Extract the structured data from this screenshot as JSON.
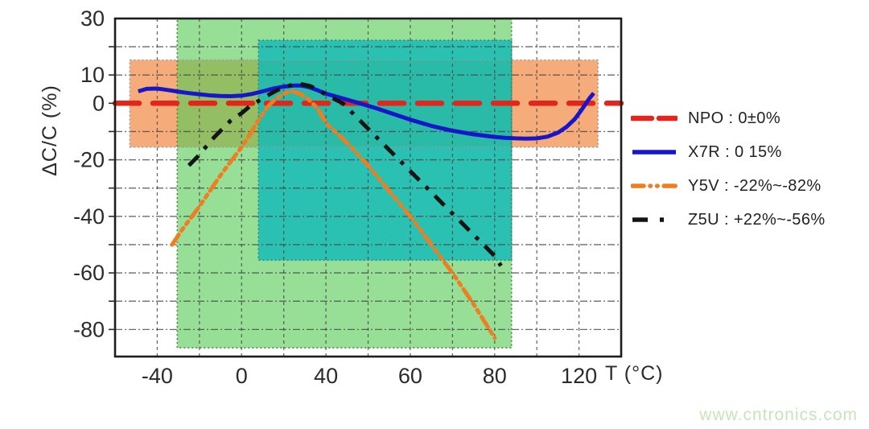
{
  "watermark": "www.cntronics.com",
  "chart_data": {
    "type": "line",
    "title": "",
    "xlabel": "T (°C)",
    "ylabel": "ΔC/C (%)",
    "grid": true,
    "legend_position": "right",
    "x_axis_note": "nonlinear temperature axis: equal pixel spacing between stop values",
    "x_stops": [
      -60,
      -40,
      -20,
      0,
      20,
      40,
      50,
      60,
      70,
      80,
      100,
      120,
      140
    ],
    "ylim": [
      -89.5,
      30
    ],
    "x_tick_labels": [
      {
        "t": -40,
        "label": "-40"
      },
      {
        "t": 0,
        "label": "0"
      },
      {
        "t": 40,
        "label": "40"
      },
      {
        "t": 60,
        "label": "60"
      },
      {
        "t": 80,
        "label": "80"
      },
      {
        "t": 120,
        "label": "120"
      }
    ],
    "y_tick_labels": [
      {
        "v": 30,
        "label": "30"
      },
      {
        "v": 10,
        "label": "10"
      },
      {
        "v": 0,
        "label": "0"
      },
      {
        "v": -20,
        "label": "-20"
      },
      {
        "v": -40,
        "label": "-40"
      },
      {
        "v": -60,
        "label": "-60"
      },
      {
        "v": -80,
        "label": "-80"
      }
    ],
    "x_gridline_temps": [
      -40,
      -20,
      0,
      20,
      40,
      50,
      60,
      70,
      80,
      100,
      120
    ],
    "y_gridline_values": [
      20,
      10,
      -10,
      -20,
      -30,
      -40,
      -50,
      -60,
      -70,
      -80
    ],
    "bands": [
      {
        "name": "x7r-range",
        "t_min": -53,
        "t_max": 129,
        "v_min": -15.5,
        "v_max": 15.3,
        "fill": "#F5A873",
        "opacity": 0.95,
        "outline": "#9a9a9a"
      },
      {
        "name": "y5v-range",
        "t_min": -30.5,
        "t_max": 88,
        "v_min": -86.5,
        "v_max": 30,
        "fill": "#57C957",
        "opacity": 0.62,
        "outline": "#4a7d3a"
      },
      {
        "name": "z5u-range",
        "t_min": 8,
        "t_max": 88,
        "v_min": -55.5,
        "v_max": 22.3,
        "fill": "#0FB9B9",
        "opacity": 0.8,
        "outline": "#2b8886"
      }
    ],
    "series": [
      {
        "name": "NPO",
        "legend_label": "NPO : 0±0%",
        "color": "#E3251B",
        "style": "dashed",
        "width": 6.5,
        "points": [
          [
            -60,
            0
          ],
          [
            140,
            0
          ]
        ]
      },
      {
        "name": "X7R",
        "legend_label": "X7R : 0 15%",
        "color": "#1717C9",
        "style": "solid",
        "width": 5,
        "points": [
          [
            -49,
            4.2
          ],
          [
            -45,
            5.1
          ],
          [
            -40,
            5.2
          ],
          [
            -35,
            4.7
          ],
          [
            -30,
            4.1
          ],
          [
            -25,
            3.6
          ],
          [
            -20,
            3.2
          ],
          [
            -15,
            2.8
          ],
          [
            -10,
            2.6
          ],
          [
            -5,
            2.5
          ],
          [
            0,
            2.7
          ],
          [
            5,
            3.3
          ],
          [
            10,
            4.2
          ],
          [
            15,
            5.2
          ],
          [
            20,
            5.9
          ],
          [
            25,
            6.3
          ],
          [
            28,
            6.3
          ],
          [
            32,
            5.7
          ],
          [
            36,
            4.6
          ],
          [
            40,
            3.4
          ],
          [
            44,
            1.7
          ],
          [
            48,
            0
          ],
          [
            52,
            -1.8
          ],
          [
            56,
            -3.8
          ],
          [
            60,
            -5.8
          ],
          [
            65,
            -8
          ],
          [
            70,
            -9.7
          ],
          [
            75,
            -11
          ],
          [
            80,
            -11.9
          ],
          [
            85,
            -12.2
          ],
          [
            90,
            -12.4
          ],
          [
            95,
            -12.5
          ],
          [
            100,
            -12.4
          ],
          [
            105,
            -11.8
          ],
          [
            110,
            -10.4
          ],
          [
            114,
            -8.4
          ],
          [
            118,
            -5.6
          ],
          [
            121,
            -2.6
          ],
          [
            123,
            -0.4
          ],
          [
            125,
            1.8
          ],
          [
            127,
            3.6
          ]
        ]
      },
      {
        "name": "Y5V",
        "legend_label": "Y5V : -22%~-82%",
        "color": "#EF7E20",
        "style": "dash-dot-dot",
        "width": 5,
        "points": [
          [
            -33,
            -50
          ],
          [
            -28,
            -44.5
          ],
          [
            -24,
            -40.5
          ],
          [
            -20,
            -36.5
          ],
          [
            -15,
            -31
          ],
          [
            -10,
            -25.5
          ],
          [
            -5,
            -20.5
          ],
          [
            0,
            -15.5
          ],
          [
            4,
            -11
          ],
          [
            8,
            -6
          ],
          [
            12,
            -1.5
          ],
          [
            16,
            1.5
          ],
          [
            20,
            3.5
          ],
          [
            24,
            4.3
          ],
          [
            28,
            3.3
          ],
          [
            32,
            1.2
          ],
          [
            36,
            -1.8
          ],
          [
            40,
            -7
          ],
          [
            45,
            -14
          ],
          [
            50,
            -22
          ],
          [
            55,
            -31
          ],
          [
            60,
            -40
          ],
          [
            65,
            -50
          ],
          [
            70,
            -60
          ],
          [
            75,
            -71
          ],
          [
            80,
            -83
          ]
        ]
      },
      {
        "name": "Z5U",
        "legend_label": "Z5U : +22%~-56%",
        "color": "#141414",
        "style": "dash-dot",
        "width": 5,
        "points": [
          [
            -25,
            -22
          ],
          [
            -21,
            -19
          ],
          [
            -17,
            -15.5
          ],
          [
            -13,
            -12
          ],
          [
            -9,
            -9
          ],
          [
            -5,
            -6
          ],
          [
            0,
            -3.5
          ],
          [
            4,
            -1
          ],
          [
            8,
            0.8
          ],
          [
            12,
            2.6
          ],
          [
            16,
            4.3
          ],
          [
            20,
            5.7
          ],
          [
            24,
            6.5
          ],
          [
            28,
            6.8
          ],
          [
            32,
            6.2
          ],
          [
            36,
            5
          ],
          [
            40,
            3
          ],
          [
            44,
            0
          ],
          [
            48,
            -6
          ],
          [
            52,
            -12
          ],
          [
            56,
            -18
          ],
          [
            60,
            -24
          ],
          [
            64,
            -30
          ],
          [
            68,
            -36
          ],
          [
            72,
            -42
          ],
          [
            76,
            -48
          ],
          [
            80,
            -54
          ],
          [
            83,
            -57.5
          ]
        ]
      }
    ]
  }
}
